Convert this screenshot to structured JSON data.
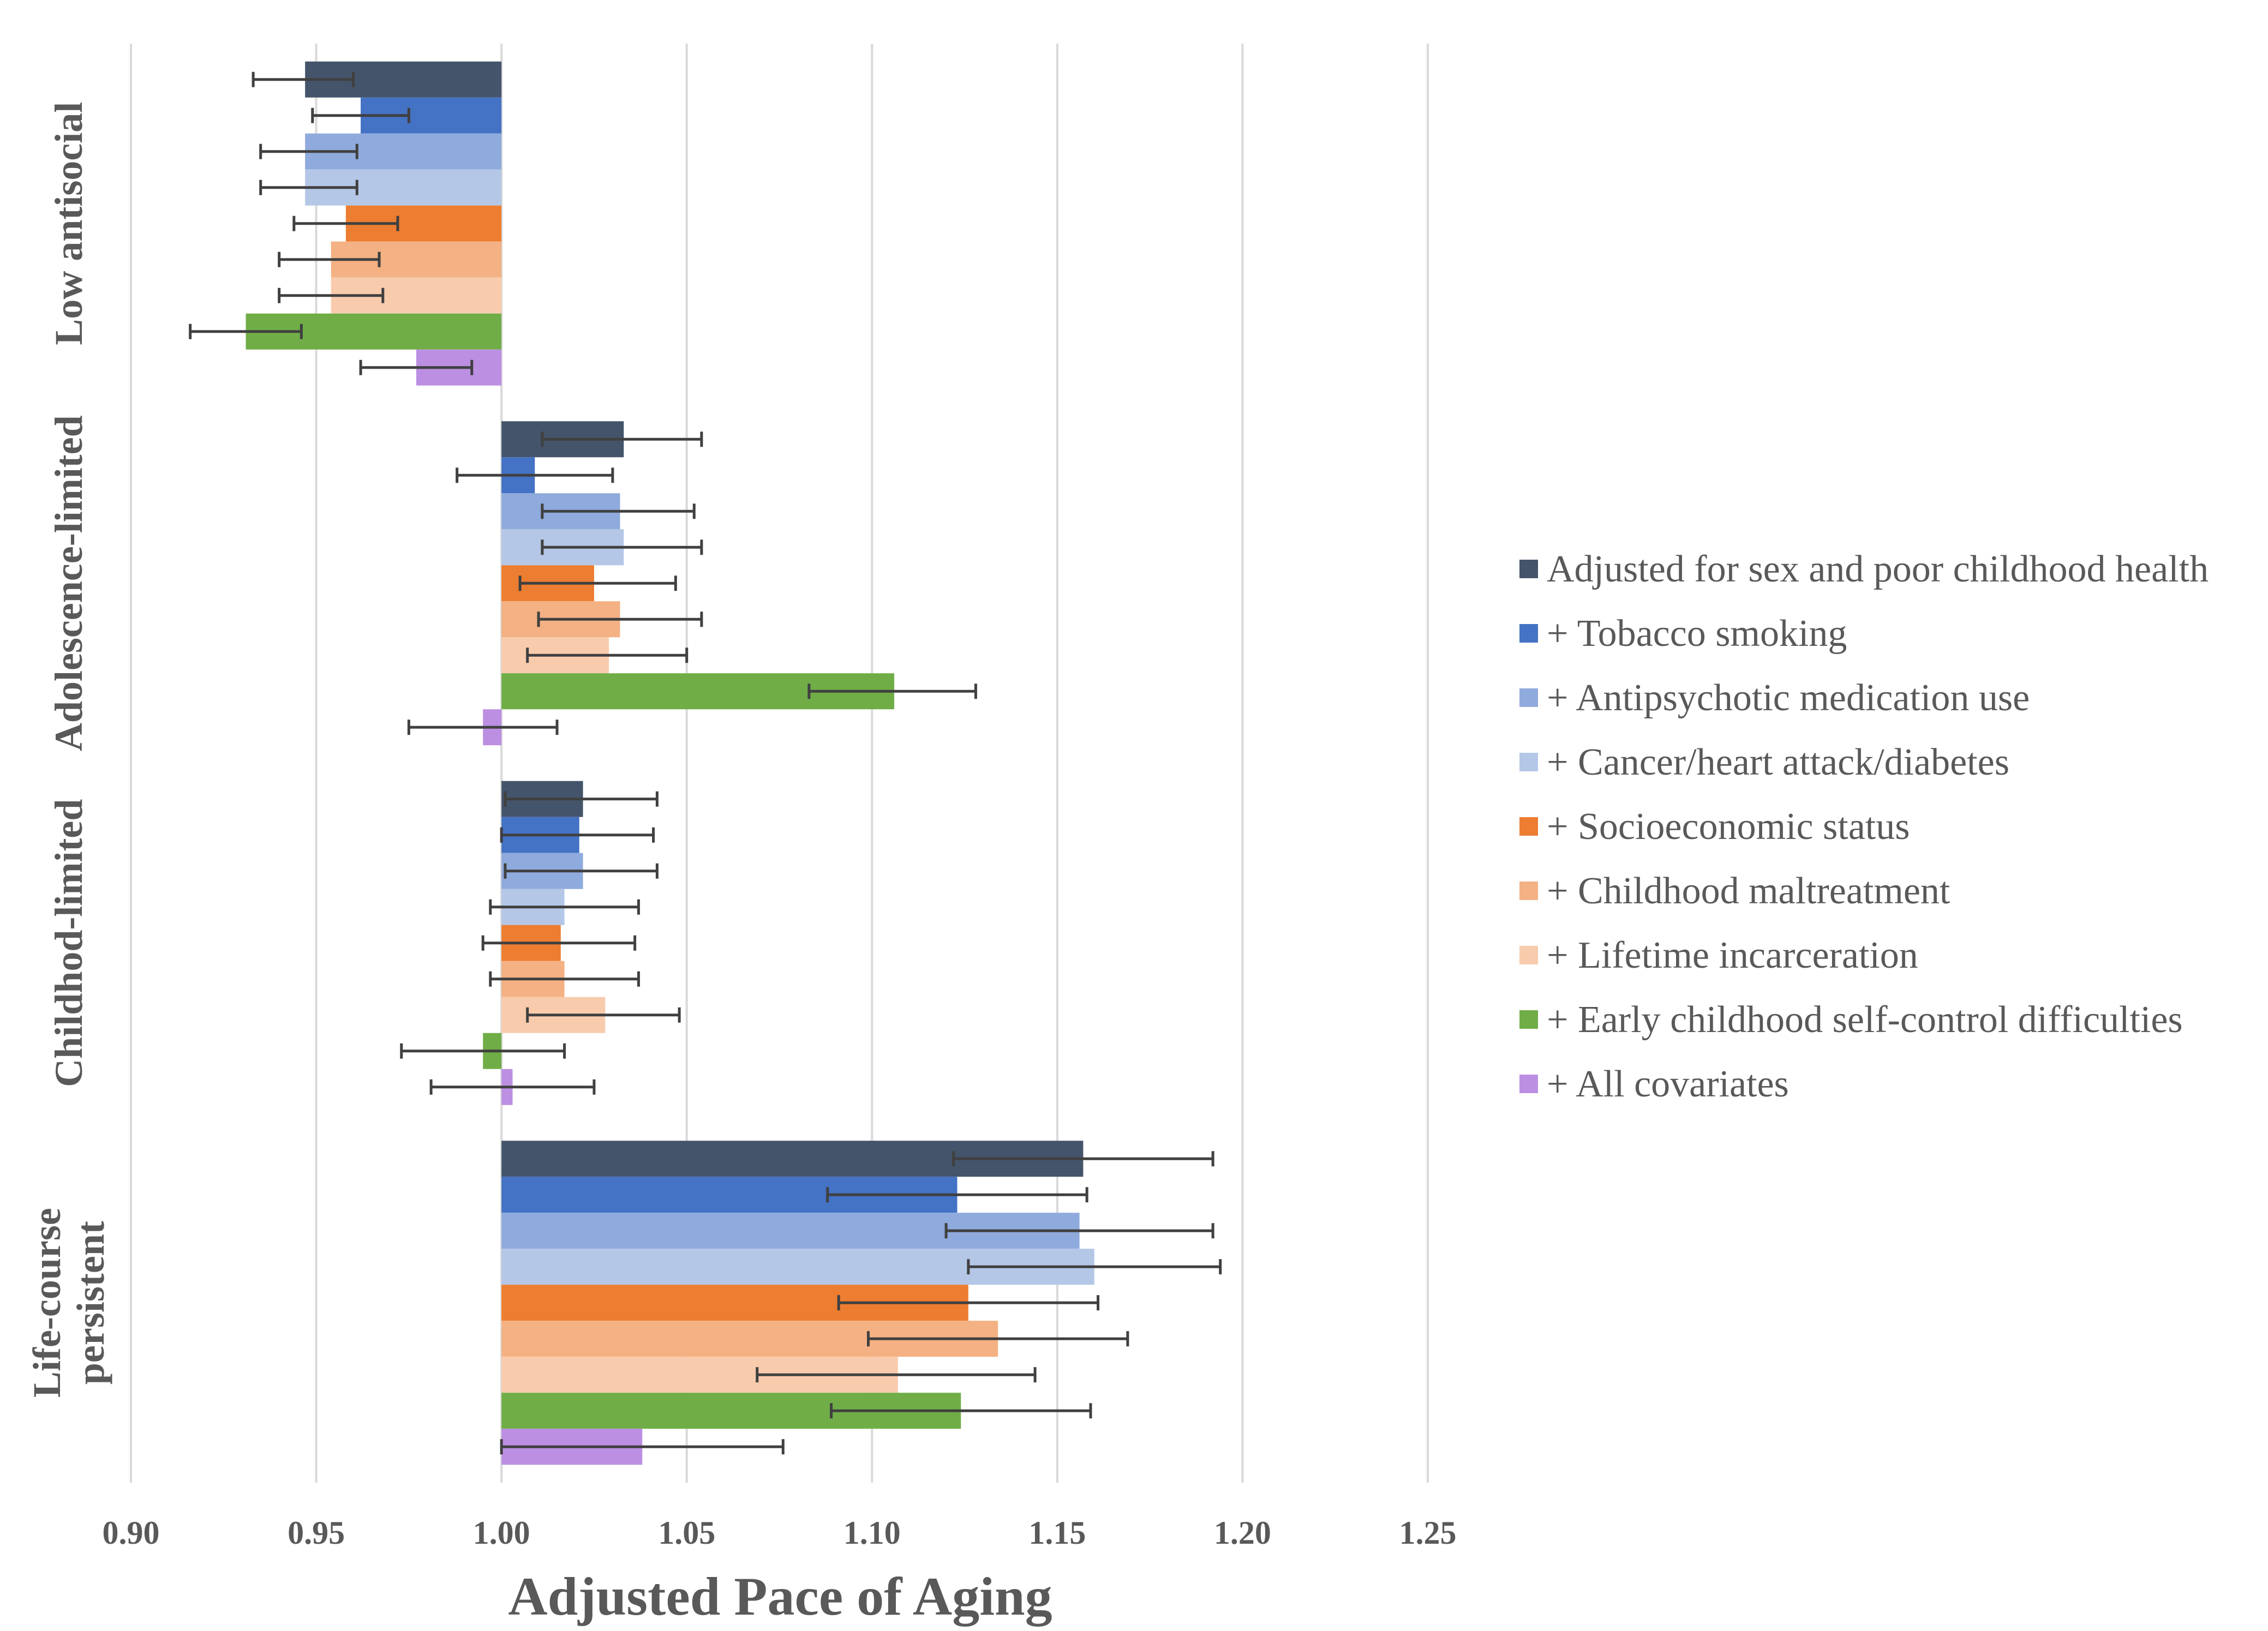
{
  "chart_data": {
    "type": "bar",
    "orientation": "horizontal",
    "title": "",
    "xlabel": "Adjusted Pace of Aging",
    "ylabel": "",
    "xlim": [
      0.9,
      1.25
    ],
    "baseline": 1.0,
    "x_ticks": [
      "0.90",
      "0.95",
      "1.00",
      "1.05",
      "1.10",
      "1.15",
      "1.20",
      "1.25"
    ],
    "grid": true,
    "legend_position": "right",
    "categories": [
      "Low antisocial",
      "Adolescence-limited",
      "Childhod-limited",
      "Life-course persistent"
    ],
    "category_label_lines": [
      [
        "Low antisocial"
      ],
      [
        "Adolescence-limited"
      ],
      [
        "Childhod-limited"
      ],
      [
        "Life-course",
        "persistent"
      ]
    ],
    "series": [
      {
        "name": "Adjusted for sex and poor childhood health",
        "color": "#44546A",
        "values": [
          0.947,
          1.033,
          1.022,
          1.157
        ],
        "ci_low": [
          0.933,
          1.011,
          1.001,
          1.122
        ],
        "ci_high": [
          0.96,
          1.054,
          1.042,
          1.192
        ]
      },
      {
        "name": "+ Tobacco smoking",
        "color": "#4472C4",
        "values": [
          0.962,
          1.009,
          1.021,
          1.123
        ],
        "ci_low": [
          0.949,
          0.988,
          1.0,
          1.088
        ],
        "ci_high": [
          0.975,
          1.03,
          1.041,
          1.158
        ]
      },
      {
        "name": "+ Antipsychotic medication use",
        "color": "#8FAADC",
        "values": [
          0.947,
          1.032,
          1.022,
          1.156
        ],
        "ci_low": [
          0.935,
          1.011,
          1.001,
          1.12
        ],
        "ci_high": [
          0.961,
          1.052,
          1.042,
          1.192
        ]
      },
      {
        "name": "+ Cancer/heart attack/diabetes",
        "color": "#B4C7E7",
        "values": [
          0.947,
          1.033,
          1.017,
          1.16
        ],
        "ci_low": [
          0.935,
          1.011,
          0.997,
          1.126
        ],
        "ci_high": [
          0.961,
          1.054,
          1.037,
          1.194
        ]
      },
      {
        "name": "+ Socioeconomic status",
        "color": "#ED7D31",
        "values": [
          0.958,
          1.025,
          1.016,
          1.126
        ],
        "ci_low": [
          0.944,
          1.005,
          0.995,
          1.091
        ],
        "ci_high": [
          0.972,
          1.047,
          1.036,
          1.161
        ]
      },
      {
        "name": "+ Childhood maltreatment",
        "color": "#F4B183",
        "values": [
          0.954,
          1.032,
          1.017,
          1.134
        ],
        "ci_low": [
          0.94,
          1.01,
          0.997,
          1.099
        ],
        "ci_high": [
          0.967,
          1.054,
          1.037,
          1.169
        ]
      },
      {
        "name": "+ Lifetime incarceration",
        "color": "#F8CBAD",
        "values": [
          0.954,
          1.029,
          1.028,
          1.107
        ],
        "ci_low": [
          0.94,
          1.007,
          1.007,
          1.069
        ],
        "ci_high": [
          0.968,
          1.05,
          1.048,
          1.144
        ]
      },
      {
        "name": "+ Early childhood self-control difficulties",
        "color": "#70AD47",
        "values": [
          0.931,
          1.106,
          0.995,
          1.124
        ],
        "ci_low": [
          0.916,
          1.083,
          0.973,
          1.089
        ],
        "ci_high": [
          0.946,
          1.128,
          1.017,
          1.159
        ]
      },
      {
        "name": "+ All covariates",
        "color": "#BC8FE3",
        "values": [
          0.977,
          0.995,
          1.003,
          1.038
        ],
        "ci_low": [
          0.962,
          0.975,
          0.981,
          1.0
        ],
        "ci_high": [
          0.992,
          1.015,
          1.025,
          1.076
        ]
      }
    ]
  }
}
